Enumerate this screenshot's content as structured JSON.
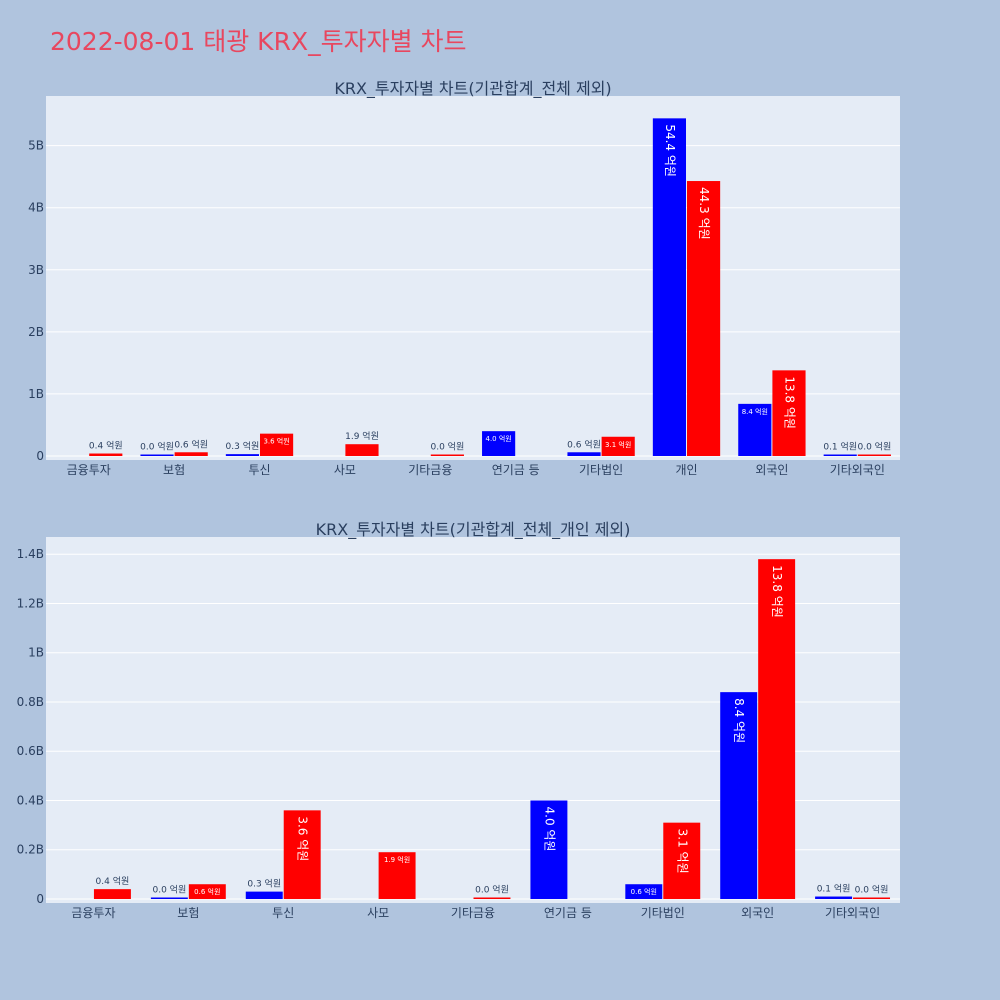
{
  "page": {
    "title": "2022-08-01 태광 KRX_투자자별 차트"
  },
  "colors": {
    "background": "#b0c4de",
    "plot_bg": "#e5ecf6",
    "title": "#e8475f",
    "series_buy": "#0000ff",
    "series_sell": "#ff0000",
    "text": "#2a3f5f"
  },
  "chart_data": [
    {
      "type": "bar",
      "title": "KRX_투자자별 차트(기관합계_전체 제외)",
      "categories": [
        "금융투자",
        "보험",
        "투신",
        "사모",
        "기타금융",
        "연기금 등",
        "기타법인",
        "개인",
        "외국인",
        "기타외국인"
      ],
      "series": [
        {
          "color": "#0000ff",
          "values": [
            null,
            0.0,
            0.03,
            null,
            null,
            0.4,
            0.06,
            5.44,
            0.84,
            0.01
          ],
          "labels": [
            null,
            "0.0 억원",
            "0.3 억원",
            null,
            null,
            "4.0 억원",
            "0.6 억원",
            "54.4 억원",
            "8.4 억원",
            "0.1 억원"
          ]
        },
        {
          "color": "#ff0000",
          "values": [
            0.04,
            0.06,
            0.36,
            0.19,
            0.0,
            null,
            0.31,
            4.43,
            1.38,
            0.0
          ],
          "labels": [
            "0.4 억원",
            "0.6 억원",
            "3.6 억원",
            "1.9 억원",
            "0.0 억원",
            null,
            "3.1 억원",
            "44.3 억원",
            "13.8 억원",
            "0.0 억원"
          ]
        }
      ],
      "ylim": [
        0,
        5.8
      ],
      "yticks": [
        0,
        1,
        2,
        3,
        4,
        5
      ],
      "ytick_labels": [
        "0",
        "1B",
        "2B",
        "3B",
        "4B",
        "5B"
      ],
      "grid": true,
      "xlabel": "",
      "ylabel": ""
    },
    {
      "type": "bar",
      "title": "KRX_투자자별 차트(기관합계_전체_개인 제외)",
      "categories": [
        "금융투자",
        "보험",
        "투신",
        "사모",
        "기타금융",
        "연기금 등",
        "기타법인",
        "외국인",
        "기타외국인"
      ],
      "series": [
        {
          "color": "#0000ff",
          "values": [
            null,
            0.0,
            0.03,
            null,
            null,
            0.4,
            0.06,
            0.84,
            0.01
          ],
          "labels": [
            null,
            "0.0 억원",
            "0.3 억원",
            null,
            null,
            "4.0 억원",
            "0.6 억원",
            "8.4 억원",
            "0.1 억원"
          ]
        },
        {
          "color": "#ff0000",
          "values": [
            0.04,
            0.06,
            0.36,
            0.19,
            0.0,
            null,
            0.31,
            1.38,
            0.0
          ],
          "labels": [
            "0.4 억원",
            "0.6 억원",
            "3.6 억원",
            "1.9 억원",
            "0.0 억원",
            null,
            "3.1 억원",
            "13.8 억원",
            "0.0 억원"
          ]
        }
      ],
      "ylim": [
        0,
        1.47
      ],
      "yticks": [
        0,
        0.2,
        0.4,
        0.6,
        0.8,
        1.0,
        1.2,
        1.4
      ],
      "ytick_labels": [
        "0",
        "0.2B",
        "0.4B",
        "0.6B",
        "0.8B",
        "1B",
        "1.2B",
        "1.4B"
      ],
      "grid": true,
      "xlabel": "",
      "ylabel": ""
    }
  ]
}
